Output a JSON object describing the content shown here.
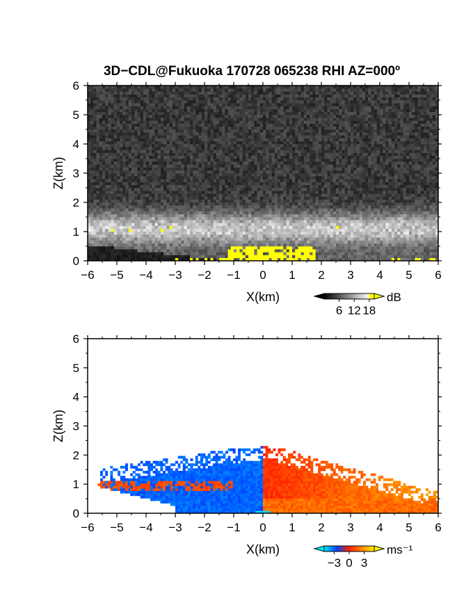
{
  "title": "3D−CDL@Fukuoka 170728 065238 RHI AZ=000º",
  "chart_data": [
    {
      "type": "heatmap",
      "title": "3D−CDL@Fukuoka 170728 065238 RHI AZ=000º",
      "xlabel": "X(km)",
      "ylabel": "Z(km)",
      "xlim": [
        -6,
        6
      ],
      "ylim": [
        0,
        6
      ],
      "xticks": [
        "−6",
        "−5",
        "−4",
        "−3",
        "−2",
        "−1",
        "0",
        "1",
        "2",
        "3",
        "4",
        "5",
        "6"
      ],
      "yticks": [
        "0",
        "1",
        "2",
        "3",
        "4",
        "5",
        "6"
      ],
      "colorbar": {
        "unit": "dB",
        "ticks": [
          "6",
          "12",
          "18"
        ],
        "tick_values": [
          6,
          12,
          18
        ],
        "range": [
          0,
          20
        ],
        "colors": [
          "#000000",
          "#ffffff",
          "#ffff00"
        ]
      }
    },
    {
      "type": "heatmap",
      "xlabel": "X(km)",
      "ylabel": "Z(km)",
      "xlim": [
        -6,
        6
      ],
      "ylim": [
        0,
        6
      ],
      "xticks": [
        "−6",
        "−5",
        "−4",
        "−3",
        "−2",
        "−1",
        "0",
        "1",
        "2",
        "3",
        "4",
        "5",
        "6"
      ],
      "yticks": [
        "0",
        "1",
        "2",
        "3",
        "4",
        "5",
        "6"
      ],
      "colorbar": {
        "unit": "ms⁻¹",
        "ticks": [
          "−3",
          "0",
          "3"
        ],
        "tick_values": [
          -3,
          0,
          3
        ],
        "range": [
          -5,
          5
        ],
        "colors": [
          "#00e5ff",
          "#0044ff",
          "#ff2200",
          "#ff8800",
          "#ffee00"
        ]
      }
    }
  ]
}
